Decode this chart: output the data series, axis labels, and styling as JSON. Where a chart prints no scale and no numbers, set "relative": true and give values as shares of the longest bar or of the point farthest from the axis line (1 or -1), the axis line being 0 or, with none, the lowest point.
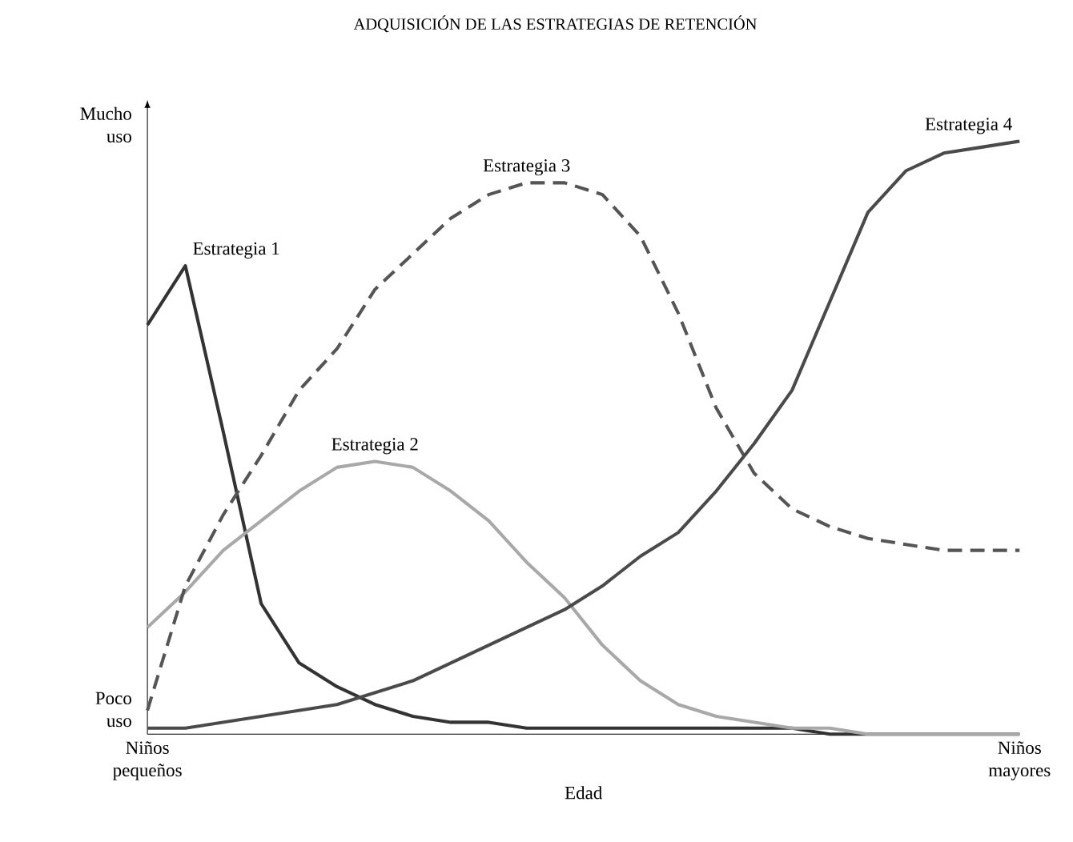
{
  "chart_data": {
    "type": "line",
    "relative": true,
    "title": "ADQUISICIÓN DE LAS ESTRATEGIAS DE RETENCIÓN",
    "xlabel": "Edad",
    "categories": [
      "Niños pequeños",
      null,
      null,
      null,
      null,
      null,
      null,
      null,
      null,
      null,
      null,
      null,
      null,
      null,
      null,
      null,
      null,
      null,
      null,
      null,
      null,
      null,
      null,
      "Niños mayores"
    ],
    "annotations": [
      "Mucho uso",
      "Poco uso"
    ],
    "series": [
      {
        "name": "Estrategia 1",
        "color": "#333333",
        "line_style": "solid",
        "values": [
          0.69,
          0.79,
          0.51,
          0.22,
          0.12,
          0.08,
          0.05,
          0.03,
          0.02,
          0.02,
          0.01,
          0.01,
          0.01,
          0.01,
          0.01,
          0.01,
          0.01,
          0.01,
          0,
          0,
          0,
          0,
          0,
          0
        ]
      },
      {
        "name": "Estrategia 2",
        "color": "#a8a8a8",
        "line_style": "solid",
        "values": [
          0.18,
          0.24,
          0.31,
          0.36,
          0.41,
          0.45,
          0.46,
          0.45,
          0.41,
          0.36,
          0.29,
          0.23,
          0.15,
          0.09,
          0.05,
          0.03,
          0.02,
          0.01,
          0.01,
          0,
          0,
          0,
          0,
          0
        ]
      },
      {
        "name": "Estrategia 3",
        "color": "#555555",
        "line_style": "dashed",
        "values": [
          0.04,
          0.25,
          0.37,
          0.47,
          0.58,
          0.65,
          0.75,
          0.81,
          0.87,
          0.91,
          0.93,
          0.93,
          0.91,
          0.84,
          0.71,
          0.55,
          0.44,
          0.38,
          0.35,
          0.33,
          0.32,
          0.31,
          0.31,
          0.31
        ]
      },
      {
        "name": "Estrategia 4",
        "color": "#4a4a4a",
        "line_style": "solid",
        "values": [
          0.01,
          0.01,
          0.02,
          0.03,
          0.04,
          0.05,
          0.07,
          0.09,
          0.12,
          0.15,
          0.18,
          0.21,
          0.25,
          0.3,
          0.34,
          0.41,
          0.49,
          0.58,
          0.73,
          0.88,
          0.95,
          0.98,
          0.99,
          1
        ]
      }
    ]
  }
}
